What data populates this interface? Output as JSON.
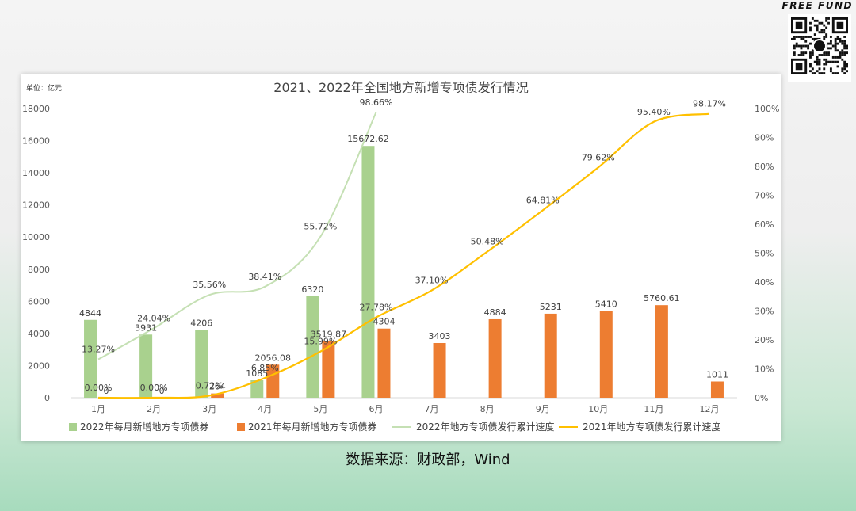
{
  "brand": "FREE FUND",
  "source_text": "数据来源：财政部，Wind",
  "colors": {
    "bar2022": "#a9d18e",
    "bar2021": "#ed7d31",
    "line2022": "#c5e0b4",
    "line2021": "#ffc000"
  },
  "chart_data": {
    "type": "bar",
    "title": "2021、2022年全国地方新增专项债发行情况",
    "unit_label": "单位：亿元",
    "categories": [
      "1月",
      "2月",
      "3月",
      "4月",
      "5月",
      "6月",
      "7月",
      "8月",
      "9月",
      "10月",
      "11月",
      "12月"
    ],
    "ylim": [
      0,
      18000
    ],
    "y_ticks": [
      "0",
      "2000",
      "4000",
      "6000",
      "8000",
      "10000",
      "12000",
      "14000",
      "16000",
      "18000"
    ],
    "y2lim": [
      0,
      100
    ],
    "y2_ticks": [
      "0%",
      "10%",
      "20%",
      "30%",
      "40%",
      "50%",
      "60%",
      "70%",
      "80%",
      "90%",
      "100%"
    ],
    "legend_position": "bottom",
    "series": [
      {
        "name": "2022年每月新增地方专项债券",
        "kind": "bar",
        "axis": "left",
        "values": [
          4844,
          3931,
          4206,
          1085,
          6320,
          15672.62,
          null,
          null,
          null,
          null,
          null,
          null
        ],
        "labels": [
          "4844",
          "3931",
          "4206",
          "1085",
          "6320",
          "15672.62",
          "",
          "",
          "",
          "",
          "",
          ""
        ]
      },
      {
        "name": "2021年每月新增地方专项债券",
        "kind": "bar",
        "axis": "left",
        "values": [
          0,
          0,
          264,
          2056.08,
          3519.87,
          4304,
          3403,
          4884,
          5231,
          5410,
          5760.61,
          1011
        ],
        "labels": [
          "0",
          "0",
          "264",
          "2056.08",
          "3519.87",
          "4304",
          "3403",
          "4884",
          "5231",
          "5410",
          "5760.61",
          "1011"
        ]
      },
      {
        "name": "2022年地方专项债发行累计速度",
        "kind": "line",
        "axis": "right",
        "values": [
          13.27,
          24.04,
          35.56,
          38.41,
          55.72,
          98.66,
          null,
          null,
          null,
          null,
          null,
          null
        ],
        "labels": [
          "13.27%",
          "24.04%",
          "35.56%",
          "38.41%",
          "55.72%",
          "98.66%",
          "",
          "",
          "",
          "",
          "",
          ""
        ]
      },
      {
        "name": "2021年地方专项债发行累计速度",
        "kind": "line",
        "axis": "right",
        "values": [
          0.0,
          0.0,
          0.72,
          6.85,
          15.99,
          27.78,
          37.1,
          50.48,
          64.81,
          79.62,
          95.4,
          98.17
        ],
        "labels": [
          "0.00%",
          "0.00%",
          "0.72%",
          "6.85%",
          "15.99%",
          "27.78%",
          "37.10%",
          "50.48%",
          "64.81%",
          "79.62%",
          "95.40%",
          "98.17%"
        ]
      }
    ]
  }
}
